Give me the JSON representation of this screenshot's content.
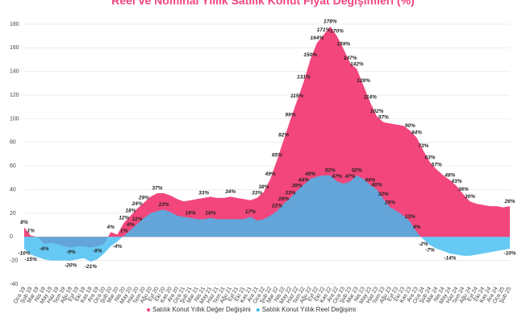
{
  "chart_data": {
    "type": "area",
    "title": "Reel ve Nominal Yıllık Satılık Konut Fiyat Değişimleri (%)",
    "categories": [
      "Oca 19",
      "Şub 19",
      "Mar 19",
      "Nis 19",
      "May 19",
      "Haz 19",
      "Tem 19",
      "Ağu 19",
      "Eyl 19",
      "Eki 19",
      "Kas 19",
      "Ara 19",
      "Oca 20",
      "Şub 20",
      "Mar 20",
      "Nis 20",
      "May 20",
      "Haz 20",
      "Tem 20",
      "Ağu 20",
      "Eyl 20",
      "Eki 20",
      "Kas 20",
      "Ara 20",
      "Oca 21",
      "Şub 21",
      "Mar 21",
      "Nis 21",
      "May 21",
      "Haz 21",
      "Tem 21",
      "Ağu 21",
      "Eyl 21",
      "Eki 21",
      "Kas 21",
      "Ara 21",
      "Oca 22",
      "Şub 22",
      "Mar 22",
      "Nis 22",
      "May 22",
      "Haz 22",
      "Tem 22",
      "Ağu 22",
      "Eyl 22",
      "Eki 22",
      "Kas 22",
      "Ara 22",
      "Oca 23",
      "Şub 23",
      "Mar 23",
      "Nis 23",
      "May 23",
      "Haz 23",
      "Tem 23",
      "Ağu 23",
      "Eyl 23",
      "Eki 23",
      "Kas 23",
      "Ara 23",
      "Oca 24",
      "Şub 24",
      "Mar 24",
      "Nis 24",
      "May 24",
      "Haz 24",
      "Tem 24",
      "Ağu 24",
      "Eyl 24",
      "Eki 24",
      "Kas 24",
      "Ara 24",
      "Oca 25",
      "Şub 25"
    ],
    "series": [
      {
        "name": "Satılık Konut Yıllık Değer Değişimi",
        "color": "#f2467c",
        "values": [
          8,
          1,
          0,
          -6,
          -5,
          -6,
          -8,
          -9,
          -8,
          -8,
          -9,
          -8,
          -6,
          4,
          2,
          12,
          18,
          24,
          29,
          34,
          37,
          37,
          35,
          32,
          30,
          31,
          32,
          33,
          34,
          33,
          33,
          34,
          33,
          32,
          31,
          33,
          38,
          49,
          65,
          82,
          99,
          115,
          131,
          150,
          164,
          171,
          178,
          170,
          159,
          147,
          142,
          128,
          114,
          102,
          97,
          96,
          95,
          94,
          90,
          84,
          73,
          63,
          57,
          52,
          48,
          43,
          36,
          30,
          28,
          27,
          26,
          26,
          25,
          26
        ],
        "value_labels": [
          "8%",
          "1%",
          null,
          "-6%",
          null,
          null,
          null,
          "-9%",
          null,
          null,
          null,
          "-8%",
          null,
          "4%",
          null,
          "12%",
          "18%",
          "24%",
          "29%",
          null,
          "37%",
          null,
          null,
          null,
          null,
          null,
          null,
          "33%",
          null,
          null,
          null,
          "34%",
          null,
          null,
          null,
          "33%",
          "38%",
          "49%",
          "65%",
          "82%",
          "99%",
          "115%",
          "131%",
          "150%",
          "164%",
          "171%",
          "178%",
          "170%",
          "159%",
          "147%",
          "142%",
          "128%",
          "114%",
          "102%",
          "97%",
          null,
          null,
          null,
          "90%",
          "84%",
          "73%",
          "63%",
          "57%",
          null,
          "48%",
          "43%",
          "36%",
          "30%",
          null,
          null,
          null,
          null,
          null,
          "26%"
        ]
      },
      {
        "name": "Satılık Konut Yıllık Reel Değişimi",
        "color": "#3fbcf0",
        "values": [
          -10,
          -15,
          -17,
          -19,
          -20,
          -20,
          -20,
          -20,
          -19,
          -18,
          -21,
          -19,
          -14,
          -8,
          -4,
          1,
          6,
          11,
          16,
          20,
          22,
          23,
          21,
          18,
          17,
          16,
          15,
          15,
          16,
          15,
          15,
          15,
          15,
          15,
          17,
          14,
          15,
          18,
          22,
          28,
          33,
          39,
          44,
          49,
          51,
          52,
          52,
          47,
          45,
          47,
          52,
          49,
          44,
          40,
          32,
          25,
          22,
          18,
          13,
          4,
          -2,
          -7,
          -10,
          -12,
          -14,
          -15,
          -16,
          -16,
          -15,
          -14,
          -13,
          -12,
          -11,
          -10
        ],
        "value_labels": [
          "-10%",
          "-15%",
          null,
          null,
          null,
          null,
          null,
          "-20%",
          null,
          null,
          "-21%",
          null,
          null,
          null,
          "-4%",
          "1%",
          "6%",
          "11%",
          null,
          null,
          null,
          "23%",
          null,
          null,
          null,
          "16%",
          null,
          null,
          "16%",
          null,
          null,
          null,
          null,
          null,
          "17%",
          null,
          null,
          null,
          "22%",
          "28%",
          "33%",
          "39%",
          "44%",
          "49%",
          null,
          null,
          "52%",
          "47%",
          null,
          "47%",
          "52%",
          null,
          "44%",
          "40%",
          "32%",
          "25%",
          null,
          null,
          "13%",
          "4%",
          "-2%",
          "-7%",
          null,
          null,
          "-14%",
          null,
          null,
          null,
          null,
          null,
          null,
          null,
          null,
          "-10%"
        ]
      }
    ],
    "ylim": [
      -40,
      180
    ],
    "yticks": [
      -40,
      -20,
      0,
      20,
      40,
      60,
      80,
      100,
      120,
      140,
      160,
      180
    ],
    "grid": true,
    "legend": "bottom"
  }
}
